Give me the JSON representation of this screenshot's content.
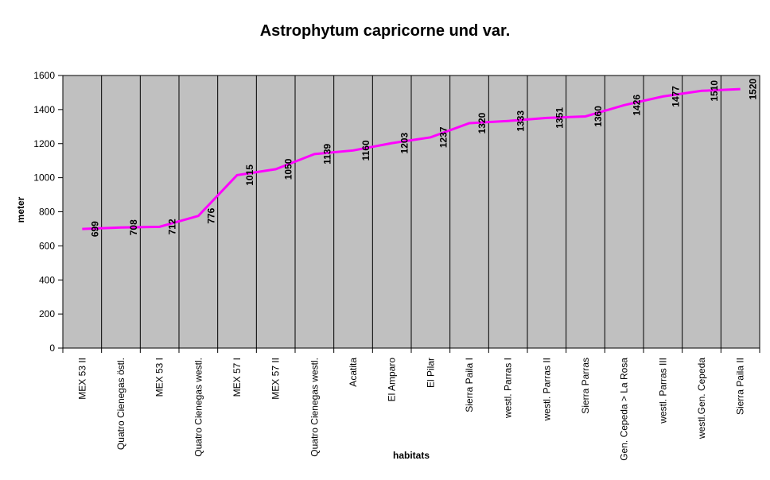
{
  "chart_data": {
    "type": "line",
    "title": "Astrophytum capricorne und var.",
    "xlabel": "habitats",
    "ylabel": "meter",
    "categories": [
      "MEX 53 II",
      "Quatro Cienegas östl.",
      "MEX 53 I",
      "Quatro Cienegas westl.",
      "MEX 57 I",
      "MEX 57 II",
      "Quatro Cienegas westl.",
      "Acatita",
      "El Amparo",
      "El Pilar",
      "Sierra Paila I",
      "westl. Parras I",
      "westl. Parras II",
      "Sierra Parras",
      "Gen. Cepeda > La Rosa",
      "westl. Parras III",
      "westl.Gen. Cepeda",
      "Sierra Paila II"
    ],
    "values": [
      699,
      708,
      712,
      776,
      1015,
      1050,
      1139,
      1160,
      1203,
      1237,
      1320,
      1333,
      1351,
      1360,
      1426,
      1477,
      1510,
      1520
    ],
    "ylim": [
      0,
      1600
    ],
    "yticks": [
      0,
      200,
      400,
      600,
      800,
      1000,
      1200,
      1400,
      1600
    ],
    "grid": "vertical-category-lines",
    "legend": "none",
    "data_labels": true,
    "colors": {
      "series": "#FF00FF",
      "plot_bg": "#C0C0C0",
      "axis": "#000000",
      "text": "#000000",
      "background": "#FFFFFF"
    }
  }
}
